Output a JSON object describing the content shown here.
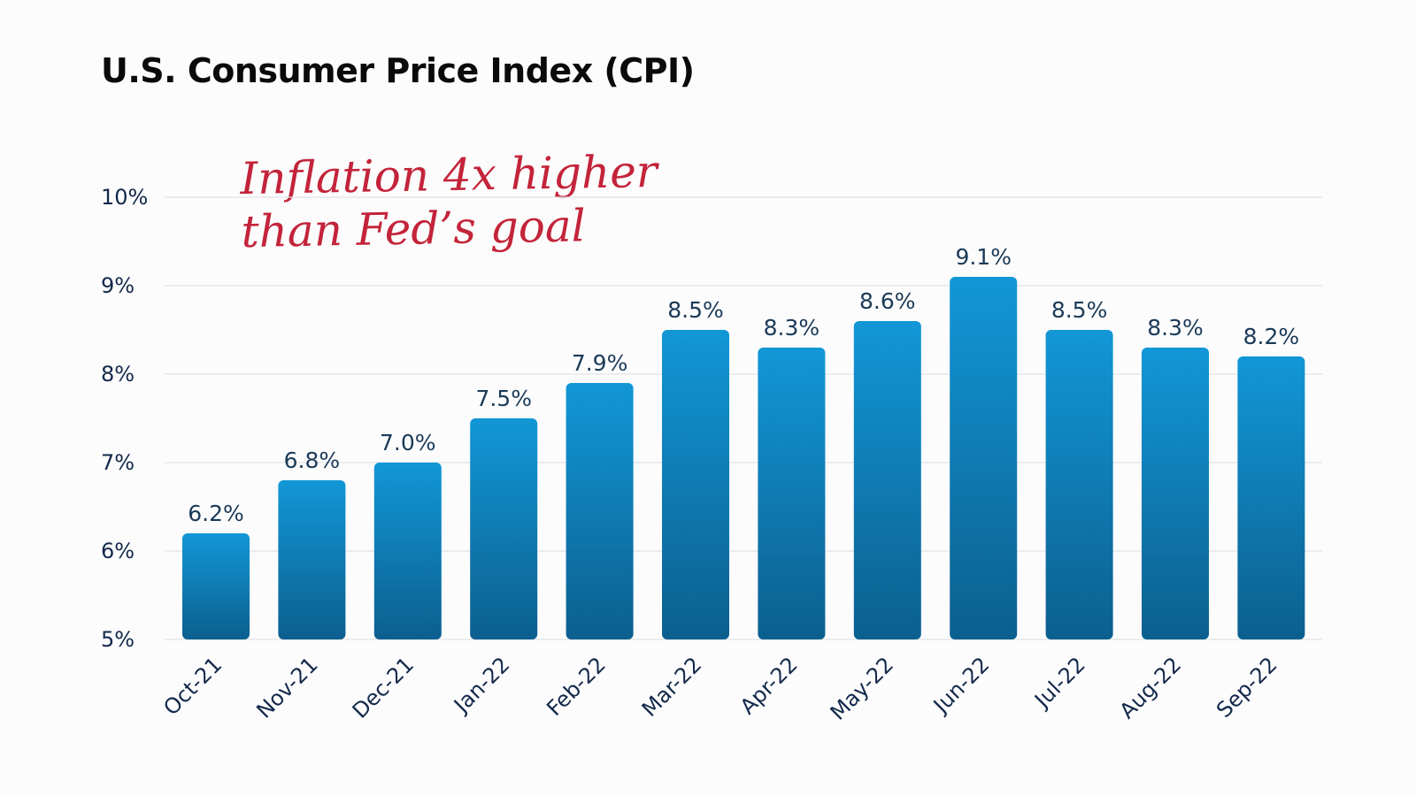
{
  "title": "U.S. Consumer Price Index (CPI)",
  "annotation": {
    "line1": "Inflation 4x higher",
    "line2": "than Fed’s goal",
    "color": "#c3243a"
  },
  "colors": {
    "bar_top": "#1297d6",
    "bar_bottom": "#0c5f8f",
    "grid": "#e0e2e6",
    "value_label": "#1b3a57",
    "axis_text": "#13284a"
  },
  "chart_data": {
    "type": "bar",
    "title": "U.S. Consumer Price Index (CPI)",
    "xlabel": "",
    "ylabel": "",
    "categories": [
      "Oct-21",
      "Nov-21",
      "Dec-21",
      "Jan-22",
      "Feb-22",
      "Mar-22",
      "Apr-22",
      "May-22",
      "Jun-22",
      "Jul-22",
      "Aug-22",
      "Sep-22"
    ],
    "values": [
      6.2,
      6.8,
      7.0,
      7.5,
      7.9,
      8.5,
      8.3,
      8.6,
      9.1,
      8.5,
      8.3,
      8.2
    ],
    "value_labels": [
      "6.2%",
      "6.8%",
      "7.0%",
      "7.5%",
      "7.9%",
      "8.5%",
      "8.3%",
      "8.6%",
      "9.1%",
      "8.5%",
      "8.3%",
      "8.2%"
    ],
    "ylim": [
      5,
      10
    ],
    "yticks": [
      5,
      6,
      7,
      8,
      9,
      10
    ],
    "ytick_labels": [
      "5%",
      "6%",
      "7%",
      "8%",
      "9%",
      "10%"
    ],
    "grid": true,
    "legend": "none"
  }
}
